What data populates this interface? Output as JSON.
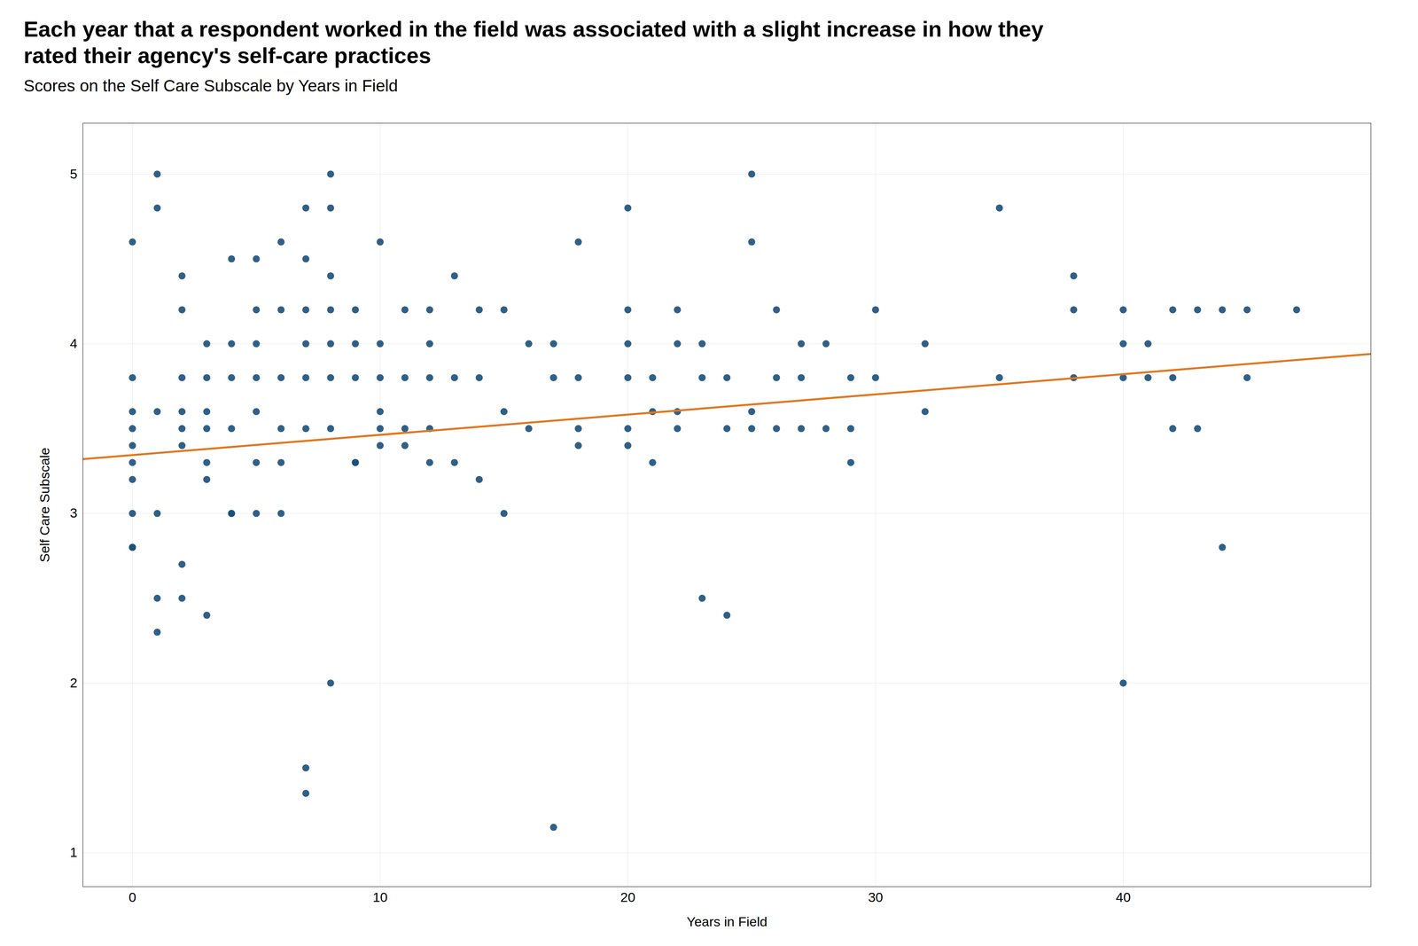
{
  "chart_data": {
    "type": "scatter",
    "title": "Each year that a respondent worked in the field was associated with a slight increase in how they\nrated their agency's self-care practices",
    "subtitle": "Scores on the Self Care Subscale by Years in Field",
    "xlabel": "Years in Field",
    "ylabel": "Self Care Subscale",
    "xlim": [
      -2,
      50
    ],
    "ylim": [
      0.8,
      5.3
    ],
    "xticks": [
      0,
      10,
      20,
      30,
      40
    ],
    "yticks": [
      1,
      2,
      3,
      4,
      5
    ],
    "grid": true,
    "color": "#1a4f7a",
    "x": [
      0,
      0,
      0,
      0,
      0,
      0,
      0,
      0,
      0,
      0,
      1,
      1,
      1,
      1,
      1,
      1,
      2,
      2,
      2,
      2,
      2,
      2,
      2,
      2,
      3,
      3,
      3,
      3,
      3,
      3,
      3,
      4,
      4,
      4,
      4,
      4,
      4,
      5,
      5,
      5,
      5,
      5,
      5,
      5,
      6,
      6,
      6,
      6,
      6,
      6,
      7,
      7,
      7,
      7,
      7,
      7,
      7,
      7,
      8,
      8,
      8,
      8,
      8,
      8,
      8,
      8,
      9,
      9,
      9,
      9,
      9,
      10,
      10,
      10,
      10,
      10,
      10,
      11,
      11,
      11,
      11,
      12,
      12,
      12,
      12,
      12,
      13,
      13,
      13,
      14,
      14,
      14,
      15,
      15,
      15,
      16,
      16,
      17,
      17,
      17,
      18,
      18,
      18,
      18,
      20,
      20,
      20,
      20,
      20,
      20,
      21,
      21,
      21,
      22,
      22,
      22,
      22,
      23,
      23,
      23,
      24,
      24,
      24,
      25,
      25,
      25,
      25,
      26,
      26,
      26,
      27,
      27,
      27,
      28,
      28,
      29,
      29,
      29,
      30,
      30,
      32,
      32,
      35,
      35,
      38,
      38,
      38,
      40,
      40,
      40,
      40,
      41,
      41,
      42,
      42,
      42,
      43,
      43,
      44,
      44,
      45,
      45,
      47
    ],
    "values": [
      3.4,
      3.6,
      3.5,
      3.3,
      3.2,
      2.8,
      2.8,
      3.0,
      3.8,
      4.6,
      3.6,
      3.0,
      2.5,
      2.3,
      4.8,
      5.0,
      3.8,
      3.5,
      3.6,
      3.4,
      4.2,
      4.4,
      2.7,
      2.5,
      4.0,
      3.8,
      3.6,
      3.5,
      3.3,
      3.2,
      2.4,
      4.5,
      4.0,
      3.8,
      3.5,
      3.0,
      3.0,
      4.5,
      4.2,
      4.0,
      3.8,
      3.6,
      3.3,
      3.0,
      4.6,
      4.2,
      3.8,
      3.5,
      3.3,
      3.0,
      4.8,
      4.5,
      4.2,
      4.0,
      3.8,
      3.5,
      1.5,
      1.35,
      5.0,
      4.8,
      4.4,
      4.2,
      4.0,
      3.8,
      3.5,
      2.0,
      4.2,
      4.0,
      3.8,
      3.3,
      3.3,
      4.6,
      4.0,
      3.8,
      3.6,
      3.5,
      3.4,
      4.2,
      3.8,
      3.5,
      3.4,
      4.2,
      4.0,
      3.8,
      3.5,
      3.3,
      4.4,
      3.8,
      3.3,
      4.2,
      3.8,
      3.2,
      4.2,
      3.6,
      3.0,
      4.0,
      3.5,
      4.0,
      3.8,
      1.15,
      4.6,
      3.8,
      3.5,
      3.4,
      4.8,
      4.2,
      4.0,
      3.8,
      3.5,
      3.4,
      3.8,
      3.6,
      3.3,
      4.2,
      4.0,
      3.6,
      3.5,
      4.0,
      3.8,
      2.5,
      3.8,
      3.5,
      2.4,
      5.0,
      4.6,
      3.6,
      3.5,
      4.2,
      3.8,
      3.5,
      4.0,
      3.8,
      3.5,
      4.0,
      3.5,
      3.8,
      3.5,
      3.3,
      4.2,
      3.8,
      4.0,
      3.6,
      4.8,
      3.8,
      4.4,
      4.2,
      3.8,
      4.2,
      4.0,
      3.8,
      2.0,
      4.0,
      3.8,
      4.2,
      3.8,
      3.5,
      4.2,
      3.5,
      4.2,
      2.8,
      4.2,
      3.8,
      4.2
    ],
    "regression_line": {
      "x": [
        -2,
        50
      ],
      "values": [
        3.32,
        3.94
      ],
      "color": "#e07820"
    }
  }
}
